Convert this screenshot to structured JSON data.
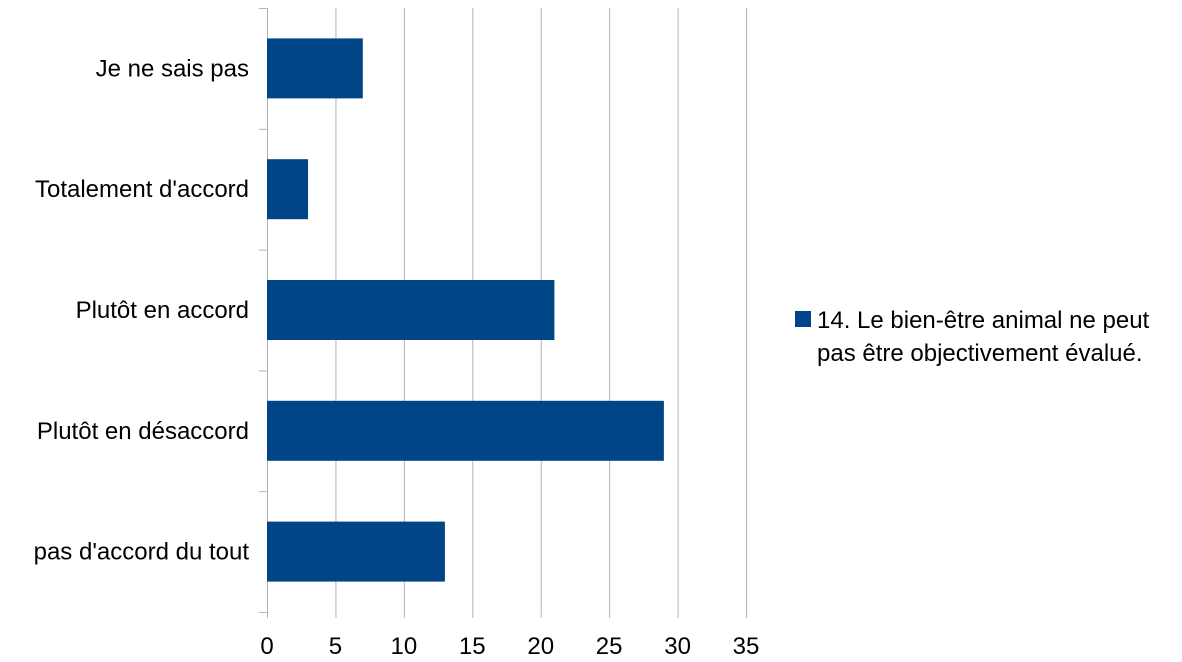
{
  "chart_data": {
    "type": "bar",
    "orientation": "horizontal",
    "categories": [
      "Je ne sais pas",
      "Totalement d'accord",
      "Plutôt en accord",
      "Plutôt en désaccord",
      "pas d'accord du tout"
    ],
    "series": [
      {
        "name": "14. Le bien-être animal ne peut pas être objectivement évalué.",
        "legend_lines": [
          "14. Le bien-être animal ne peut",
          "pas être objectivement évalué."
        ],
        "values": [
          7,
          3,
          21,
          29,
          13
        ],
        "color": "#004586"
      }
    ],
    "xlim": [
      0,
      35
    ],
    "xticks": [
      0,
      5,
      10,
      15,
      20,
      25,
      30,
      35
    ],
    "grid": true,
    "gridlines": "vertical",
    "legend_position": "right",
    "title": "",
    "xlabel": "",
    "ylabel": ""
  }
}
